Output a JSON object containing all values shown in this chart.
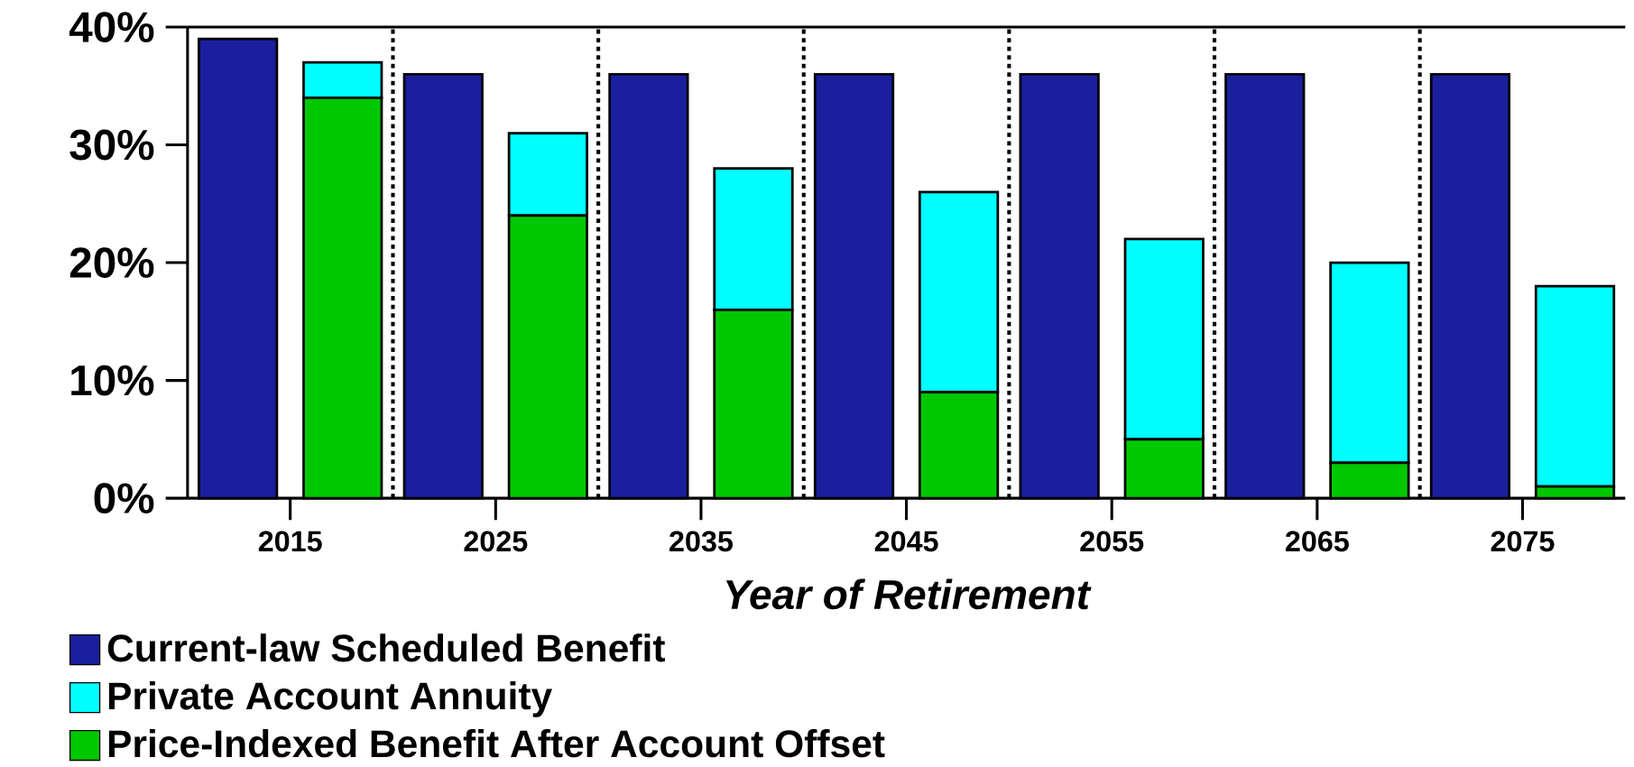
{
  "chart_data": {
    "type": "bar",
    "xlabel": "Year of Retirement",
    "categories": [
      "2015",
      "2025",
      "2035",
      "2045",
      "2055",
      "2065",
      "2075"
    ],
    "series": [
      {
        "name": "Current-law Scheduled Benefit",
        "color": "#1a1f9e",
        "values": [
          39,
          36,
          36,
          36,
          36,
          36,
          36
        ]
      },
      {
        "name": "Private Account Annuity",
        "color": "#00ffff",
        "base": [
          34,
          24,
          16,
          9,
          5,
          3,
          1
        ],
        "values": [
          3,
          7,
          12,
          17,
          17,
          17,
          17
        ]
      },
      {
        "name": "Price-Indexed Benefit After Account Offset",
        "color": "#00c800",
        "values": [
          34,
          24,
          16,
          9,
          5,
          3,
          1
        ]
      }
    ],
    "ylim": [
      0,
      40
    ],
    "yticks": [
      {
        "value": 0,
        "label": "0%"
      },
      {
        "value": 10,
        "label": "10%"
      },
      {
        "value": 20,
        "label": "20%"
      },
      {
        "value": 30,
        "label": "30%"
      },
      {
        "value": 40,
        "label": "40%"
      }
    ],
    "legend": "bottom left",
    "grid": false
  }
}
